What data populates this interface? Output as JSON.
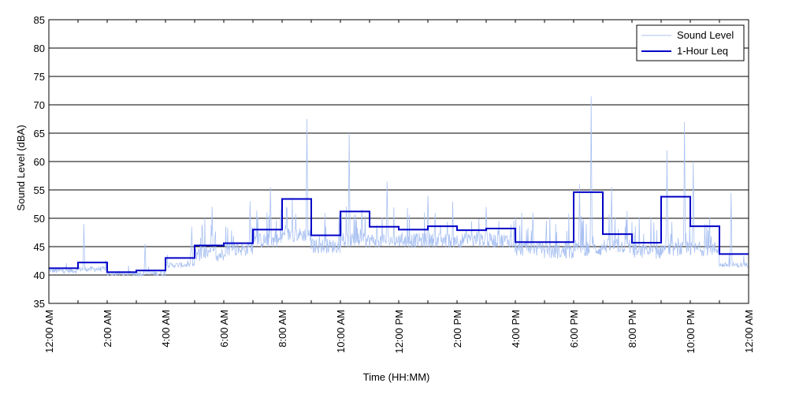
{
  "chart_data": {
    "type": "line",
    "title": "",
    "xlabel": "Time (HH:MM)",
    "ylabel": "Sound Level (dBA)",
    "xlim": [
      0,
      24
    ],
    "ylim": [
      35,
      85
    ],
    "x_tick_values": [
      0,
      2,
      4,
      6,
      8,
      10,
      12,
      14,
      16,
      18,
      20,
      22,
      24
    ],
    "x_tick_labels": [
      "12:00 AM",
      "2:00 AM",
      "4:00 AM",
      "6:00 AM",
      "8:00 AM",
      "10:00 AM",
      "12:00 PM",
      "2:00 PM",
      "4:00 PM",
      "6:00 PM",
      "8:00 PM",
      "10:00 PM",
      "12:00 AM"
    ],
    "y_ticks": [
      35,
      40,
      45,
      50,
      55,
      60,
      65,
      70,
      75,
      80,
      85
    ],
    "grid": "horizontal",
    "legend_position": "top-right",
    "series": [
      {
        "name": "Sound Level",
        "color": "#a9c1f2",
        "style": "line",
        "hourly_baseline": [
          41.5,
          41.8,
          41.0,
          41.0,
          42.5,
          43.5,
          44.5,
          46.0,
          47.0,
          45.0,
          46.0,
          46.0,
          46.0,
          46.0,
          46.0,
          46.0,
          44.5,
          44.0,
          44.5,
          45.0,
          44.0,
          44.5,
          44.5,
          42.5
        ],
        "peaks": [
          {
            "x": 1.2,
            "y": 49
          },
          {
            "x": 3.3,
            "y": 45.5
          },
          {
            "x": 4.9,
            "y": 48.5
          },
          {
            "x": 5.6,
            "y": 52
          },
          {
            "x": 6.9,
            "y": 53
          },
          {
            "x": 7.6,
            "y": 55.5
          },
          {
            "x": 8.85,
            "y": 67.5
          },
          {
            "x": 10.3,
            "y": 65
          },
          {
            "x": 11.6,
            "y": 56.5
          },
          {
            "x": 13.0,
            "y": 54
          },
          {
            "x": 15.0,
            "y": 52
          },
          {
            "x": 16.6,
            "y": 51
          },
          {
            "x": 18.2,
            "y": 56
          },
          {
            "x": 18.6,
            "y": 71.5
          },
          {
            "x": 19.3,
            "y": 55.5
          },
          {
            "x": 21.2,
            "y": 62
          },
          {
            "x": 21.8,
            "y": 67
          },
          {
            "x": 22.1,
            "y": 60
          },
          {
            "x": 23.4,
            "y": 54.5
          }
        ]
      },
      {
        "name": "1-Hour Leq",
        "color": "#0000c8",
        "style": "step",
        "x": [
          0,
          1,
          2,
          3,
          4,
          5,
          6,
          7,
          8,
          9,
          10,
          11,
          12,
          13,
          14,
          15,
          16,
          17,
          18,
          19,
          20,
          21,
          22,
          23
        ],
        "values": [
          41.2,
          42.2,
          40.5,
          40.8,
          43.0,
          45.2,
          45.6,
          48.0,
          53.4,
          47.0,
          51.2,
          48.5,
          48.0,
          48.6,
          47.9,
          48.2,
          45.8,
          45.8,
          54.6,
          47.2,
          45.7,
          53.8,
          48.6,
          43.7
        ]
      }
    ]
  }
}
